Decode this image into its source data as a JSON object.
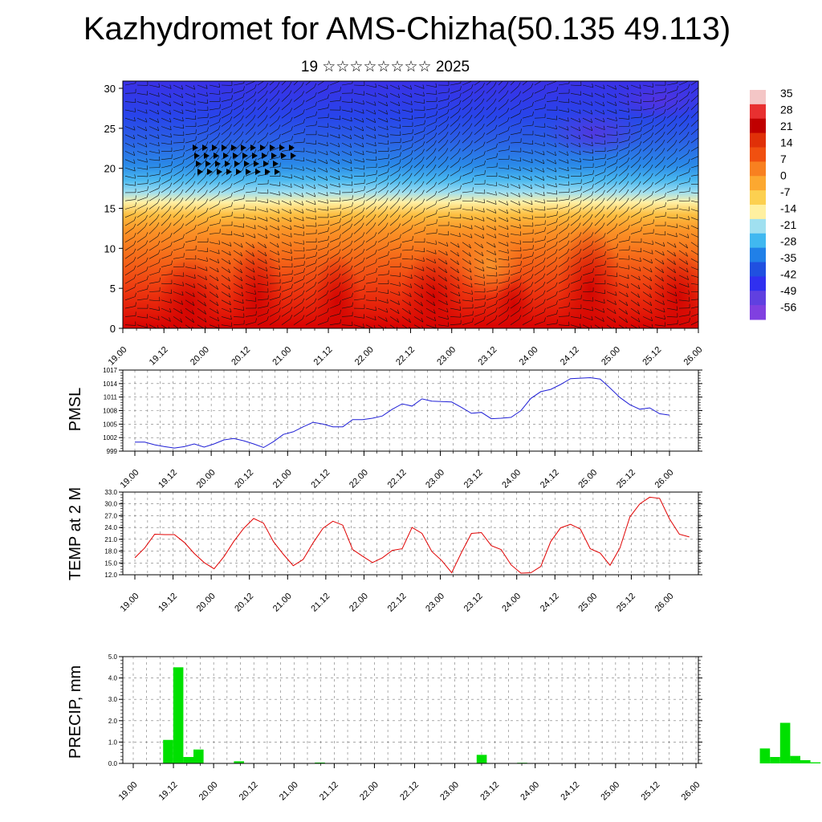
{
  "title": "Kazhydromet for AMS-Chizha(50.135 49.113)",
  "subtitle": "19 ☆☆☆☆☆☆☆☆ 2025",
  "time_labels": [
    "19.00",
    "19.12",
    "20.00",
    "20.12",
    "21.00",
    "21.12",
    "22.00",
    "22.12",
    "23.00",
    "23.12",
    "24.00",
    "24.12",
    "25.00",
    "25.12",
    "26.00"
  ],
  "colors": {
    "pmsl": "#1f1fd6",
    "temp": "#e00000",
    "precip": "#00e000"
  },
  "chart_data": [
    {
      "type": "heatmap",
      "title": "",
      "xlabel": "",
      "ylabel": "",
      "ylim": [
        0,
        30
      ],
      "yticks": [
        "0",
        "5",
        "10",
        "15",
        "20",
        "25",
        "30"
      ],
      "x": [
        "19.00",
        "19.12",
        "20.00",
        "20.12",
        "21.00",
        "21.12",
        "22.00",
        "22.12",
        "23.00",
        "23.12",
        "24.00",
        "24.12",
        "25.00",
        "25.12",
        "26.00"
      ],
      "colorbar_labels": [
        "35",
        "28",
        "21",
        "14",
        "7",
        "0",
        "-7",
        "-14",
        "-21",
        "-28",
        "-35",
        "-42",
        "-49",
        "-56"
      ],
      "colorbar_colors": [
        "#f4c6c6",
        "#e83030",
        "#c00000",
        "#e03008",
        "#f05010",
        "#f88020",
        "#fca830",
        "#fcd050",
        "#fff0a0",
        "#a0e0f0",
        "#40b8f0",
        "#2080e8",
        "#2050e0",
        "#3030f0",
        "#6040e0",
        "#8040e0"
      ],
      "overlay": "wind barbs"
    },
    {
      "type": "line",
      "ylabel": "PMSL",
      "ylim": [
        999,
        1017
      ],
      "yticks": [
        "999",
        "1002",
        "1005",
        "1008",
        "1011",
        "1014",
        "1017"
      ],
      "grid": true,
      "series": [
        {
          "values": [
            1001.0,
            1001.0,
            1000.4,
            1000.0,
            999.7,
            1000.0,
            1000.6,
            999.9,
            1000.6,
            1001.5,
            1001.8,
            1001.3,
            1000.6,
            999.8,
            1001.1,
            1002.7,
            1003.3,
            1004.4,
            1005.4,
            1005.0,
            1004.4,
            1004.4,
            1006.0,
            1006.0,
            1006.3,
            1006.8,
            1008.3,
            1009.5,
            1009.0,
            1010.6,
            1010.1,
            1010.0,
            1009.9,
            1008.7,
            1007.4,
            1007.6,
            1006.2,
            1006.3,
            1006.5,
            1008.0,
            1010.7,
            1012.2,
            1012.7,
            1013.8,
            1015.1,
            1015.2,
            1015.3,
            1015.0,
            1013.0,
            1010.9,
            1009.3,
            1008.3,
            1008.6,
            1007.3,
            1007.0
          ]
        }
      ]
    },
    {
      "type": "line",
      "ylabel": "TEMP at 2 M",
      "ylim": [
        12.0,
        33.0
      ],
      "yticks": [
        "12.0",
        "15.0",
        "18.0",
        "21.0",
        "24.0",
        "27.0",
        "30.0",
        "33.0"
      ],
      "grid": true,
      "series": [
        {
          "values": [
            16.3,
            18.8,
            22.3,
            22.2,
            22.2,
            20.2,
            17.4,
            15.1,
            13.5,
            16.6,
            20.5,
            23.8,
            26.3,
            25.1,
            20.4,
            17.2,
            14.3,
            15.9,
            20.1,
            23.8,
            25.6,
            24.6,
            18.4,
            16.7,
            15.1,
            16.3,
            18.2,
            18.6,
            24.0,
            22.5,
            17.9,
            15.6,
            12.5,
            17.7,
            22.5,
            22.7,
            19.4,
            18.4,
            14.5,
            12.4,
            12.5,
            14.1,
            20.4,
            23.9,
            24.8,
            23.6,
            18.6,
            17.5,
            14.4,
            18.8,
            26.7,
            30.0,
            31.7,
            31.4,
            26.2,
            22.3,
            21.6
          ]
        }
      ]
    },
    {
      "type": "bar",
      "ylabel": "PRECIP, mm",
      "ylim": [
        0.0,
        5.0
      ],
      "yticks": [
        "0.0",
        "1.0",
        "2.0",
        "3.0",
        "4.0",
        "5.0"
      ],
      "grid": true,
      "values": [
        0,
        0,
        1.1,
        4.5,
        0.3,
        0.65,
        0,
        0,
        0,
        0.1,
        0,
        0,
        0,
        0,
        0,
        0,
        0,
        0.04,
        0,
        0,
        0,
        0,
        0,
        0,
        0,
        0,
        0,
        0,
        0,
        0,
        0,
        0,
        0,
        0.4,
        0,
        0,
        0,
        0.03,
        0,
        0,
        0,
        0,
        0,
        0,
        0,
        0,
        0,
        0,
        0,
        0,
        0,
        0,
        0,
        0,
        0,
        0,
        0,
        0,
        0,
        0,
        0,
        0.7,
        0.3,
        1.9,
        0.35,
        0.15,
        0.05,
        0,
        0,
        0,
        0,
        0,
        0,
        0,
        0,
        0,
        0,
        0,
        0,
        0,
        0,
        0,
        0,
        0,
        0,
        0,
        0,
        0,
        0,
        0,
        0,
        0,
        0,
        0,
        0
      ]
    }
  ]
}
